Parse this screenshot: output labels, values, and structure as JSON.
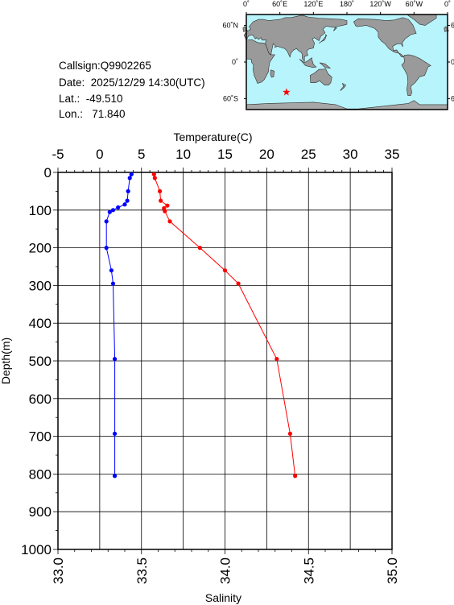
{
  "info": {
    "callsign": "Callsign:Q9902265",
    "date": "Date:  2025/12/29 14:30(UTC)",
    "lat": "Lat.:  -49.510",
    "lon": "Lon.:   71.840"
  },
  "map": {
    "top_labels": [
      "0˚",
      "60˚E",
      "120˚E",
      "180˚",
      "120˚W",
      "60˚W",
      "0˚"
    ],
    "side_labels": [
      "60˚N",
      "0˚",
      "60˚S"
    ],
    "station": {
      "lon": 71.84,
      "lat": -49.51
    },
    "colors": {
      "ocean": "#b8f4fb",
      "land": "#9a9a9a",
      "ice": "#a7a7a7",
      "marker": "#ff0000"
    }
  },
  "chart_data": {
    "type": "line",
    "ylabel": "Depth(m)",
    "ylim": [
      1000,
      0
    ],
    "yticks": [
      0,
      100,
      200,
      300,
      400,
      500,
      600,
      700,
      800,
      900,
      1000
    ],
    "grid": true,
    "top_axis": {
      "label": "Temperature(C)",
      "range": [
        -5,
        35
      ],
      "ticks": [
        -5,
        0,
        5,
        10,
        15,
        20,
        25,
        30,
        35
      ]
    },
    "bottom_axis": {
      "label": "Salinity",
      "range": [
        33.0,
        35.0
      ],
      "ticks": [
        "33.0",
        "33.5",
        "34.0",
        "34.5",
        "35.0"
      ]
    },
    "series": [
      {
        "axis": "top",
        "color": "#ff0000",
        "points": [
          {
            "x": 6.5,
            "y": 5
          },
          {
            "x": 6.6,
            "y": 15
          },
          {
            "x": 7.2,
            "y": 50
          },
          {
            "x": 7.3,
            "y": 75
          },
          {
            "x": 8.1,
            "y": 88
          },
          {
            "x": 7.7,
            "y": 95
          },
          {
            "x": 7.8,
            "y": 103
          },
          {
            "x": 8.4,
            "y": 130
          },
          {
            "x": 12.0,
            "y": 200
          },
          {
            "x": 15.0,
            "y": 260
          },
          {
            "x": 16.6,
            "y": 295
          },
          {
            "x": 21.2,
            "y": 495
          },
          {
            "x": 22.8,
            "y": 693
          },
          {
            "x": 23.4,
            "y": 805
          }
        ]
      },
      {
        "axis": "bottom",
        "color": "#0000ff",
        "points": [
          {
            "x": 33.44,
            "y": 5
          },
          {
            "x": 33.43,
            "y": 15
          },
          {
            "x": 33.42,
            "y": 50
          },
          {
            "x": 33.415,
            "y": 75
          },
          {
            "x": 33.4,
            "y": 85
          },
          {
            "x": 33.36,
            "y": 93
          },
          {
            "x": 33.33,
            "y": 100
          },
          {
            "x": 33.31,
            "y": 105
          },
          {
            "x": 33.29,
            "y": 130
          },
          {
            "x": 33.29,
            "y": 200
          },
          {
            "x": 33.32,
            "y": 260
          },
          {
            "x": 33.33,
            "y": 295
          },
          {
            "x": 33.34,
            "y": 495
          },
          {
            "x": 33.34,
            "y": 693
          },
          {
            "x": 33.34,
            "y": 805
          }
        ]
      }
    ]
  }
}
